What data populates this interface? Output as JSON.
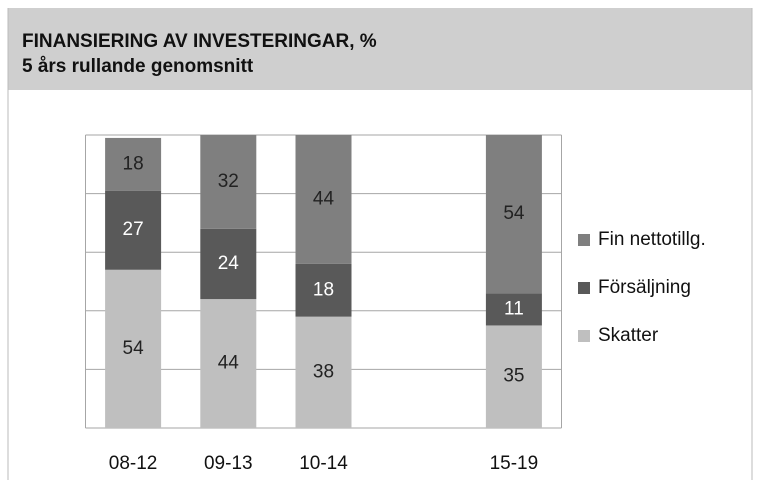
{
  "chart_data": {
    "type": "stacked_bar",
    "title": "FINANSIERING AV INVESTERINGAR, %",
    "subtitle": "5 års rullande genomsnitt",
    "categories": [
      "08-12",
      "09-13",
      "10-14",
      null,
      "15-19"
    ],
    "series": [
      {
        "name": "Skatter",
        "color": "#bfbfbf",
        "label_color": "#222222",
        "values": [
          54,
          44,
          38,
          null,
          35
        ]
      },
      {
        "name": "Försäljning",
        "color": "#595959",
        "label_color": "#ffffff",
        "values": [
          27,
          24,
          18,
          null,
          11
        ]
      },
      {
        "name": "Fin nettotillg.",
        "color": "#7f7f7f",
        "label_color": "#222222",
        "values": [
          18,
          32,
          44,
          null,
          54
        ]
      }
    ],
    "ylim": [
      0,
      100
    ],
    "yticks": [
      0,
      20,
      40,
      60,
      80,
      100
    ],
    "grid": true,
    "legend": "right"
  }
}
